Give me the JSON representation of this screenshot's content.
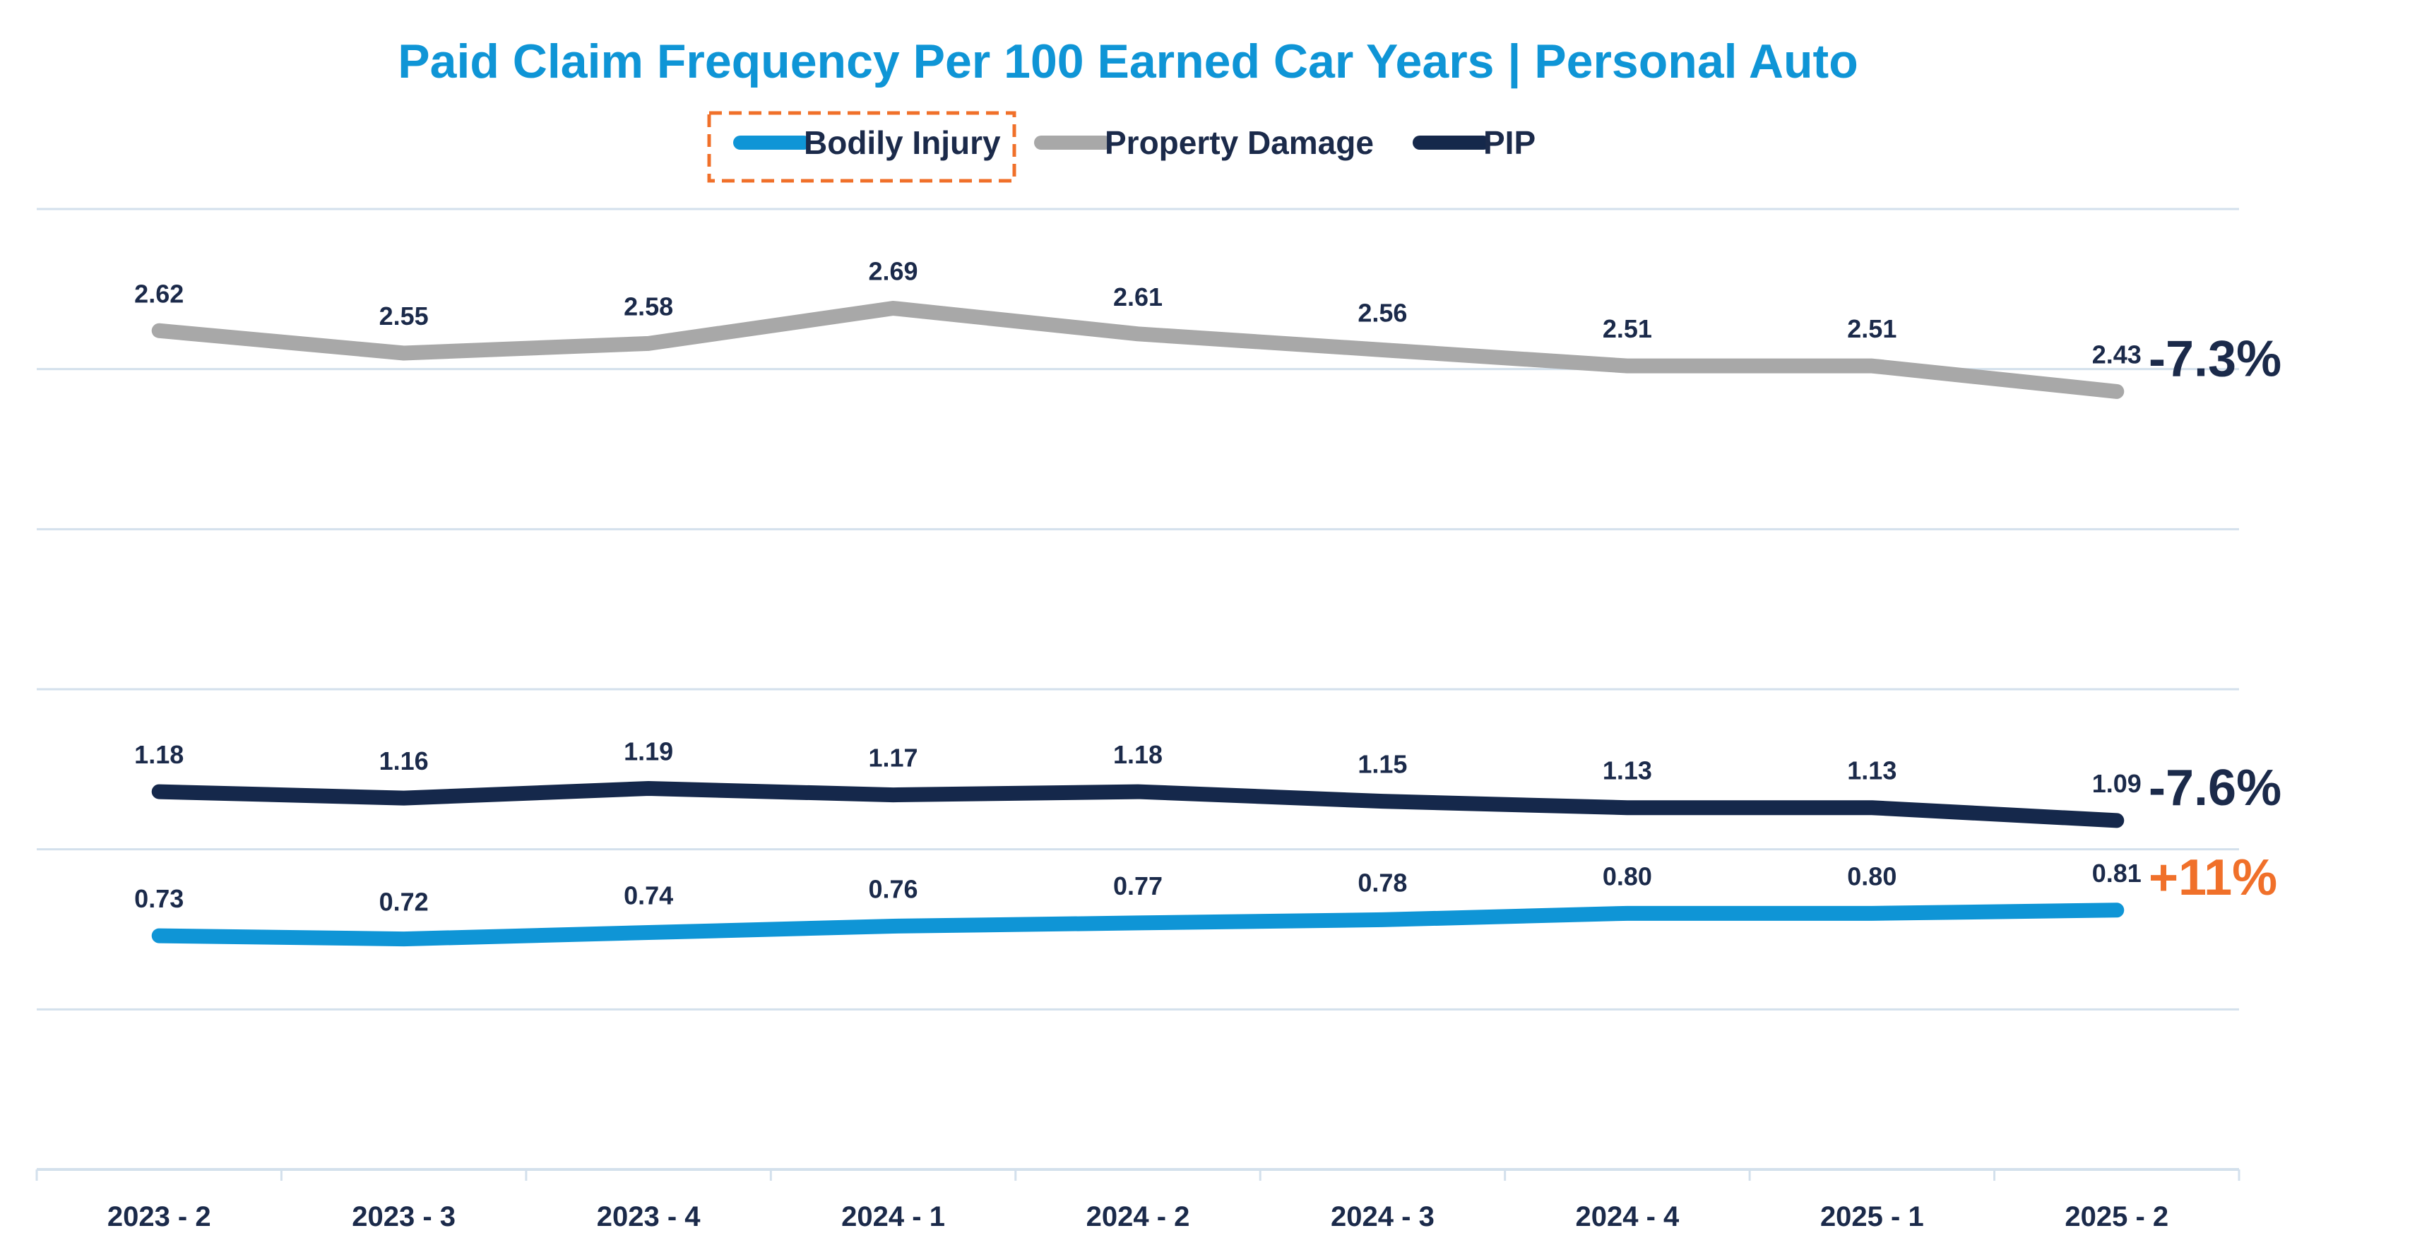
{
  "chart_data": {
    "type": "line",
    "title": "Paid Claim Frequency Per 100 Earned Car Years | Personal Auto",
    "categories": [
      "2023 - 2",
      "2023 - 3",
      "2023 - 4",
      "2024 - 1",
      "2024 - 2",
      "2024 - 3",
      "2024 - 4",
      "2025 - 1",
      "2025 - 2"
    ],
    "series": [
      {
        "name": "Bodily Injury",
        "color": "#0f95d6",
        "values": [
          0.73,
          0.72,
          0.74,
          0.76,
          0.77,
          0.78,
          0.8,
          0.8,
          0.81
        ],
        "labels": [
          "0.73",
          "0.72",
          "0.74",
          "0.76",
          "0.77",
          "0.78",
          "0.80",
          "0.80",
          "0.81"
        ],
        "change": "+11%",
        "change_color": "#f0702a",
        "highlighted": true
      },
      {
        "name": "Property Damage",
        "color": "#a8a8a8",
        "values": [
          2.62,
          2.55,
          2.58,
          2.69,
          2.61,
          2.56,
          2.51,
          2.51,
          2.43
        ],
        "labels": [
          "2.62",
          "2.55",
          "2.58",
          "2.69",
          "2.61",
          "2.56",
          "2.51",
          "2.51",
          "2.43"
        ],
        "change": "-7.3%",
        "change_color": "#1b2a4a",
        "highlighted": false
      },
      {
        "name": "PIP",
        "color": "#15284b",
        "values": [
          1.18,
          1.16,
          1.19,
          1.17,
          1.18,
          1.15,
          1.13,
          1.13,
          1.09
        ],
        "labels": [
          "1.18",
          "1.16",
          "1.19",
          "1.17",
          "1.18",
          "1.15",
          "1.13",
          "1.13",
          "1.09"
        ],
        "change": "-7.6%",
        "change_color": "#1b2a4a",
        "highlighted": false
      }
    ],
    "ylim": [
      0,
      3.0
    ],
    "grid": true,
    "legend": "top-center",
    "xlabel": "",
    "ylabel": ""
  },
  "colors": {
    "title": "#0f95d6",
    "text": "#1b2a4a",
    "grid": "#d3e0ec",
    "highlight_box": "#f0702a"
  }
}
